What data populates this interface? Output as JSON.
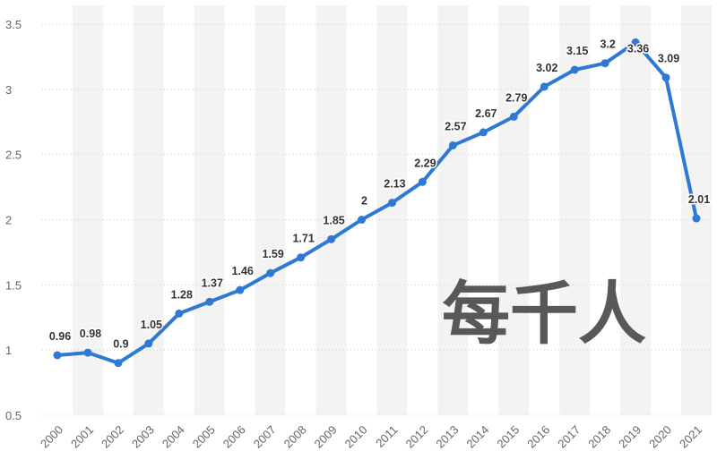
{
  "chart_data": {
    "type": "line",
    "categories": [
      "2000",
      "2001",
      "2002",
      "2003",
      "2004",
      "2005",
      "2006",
      "2007",
      "2008",
      "2009",
      "2010",
      "2011",
      "2012",
      "2013",
      "2014",
      "2015",
      "2016",
      "2017",
      "2018",
      "2019",
      "2020",
      "2021"
    ],
    "values": [
      0.96,
      0.98,
      0.9,
      1.05,
      1.28,
      1.37,
      1.46,
      1.59,
      1.71,
      1.85,
      2,
      2.13,
      2.29,
      2.57,
      2.67,
      2.79,
      3.02,
      3.15,
      3.2,
      3.36,
      3.09,
      2.01
    ],
    "ylim": [
      0.5,
      3.5
    ],
    "y_ticks": [
      0.5,
      1,
      1.5,
      2,
      2.5,
      3,
      3.5
    ],
    "grid": true,
    "legend": "none",
    "data_labels_shown": true,
    "alternating_column_bands": true,
    "line_color": "#2f78d4",
    "band_color": "#f3f3f3",
    "annotation": "每千人"
  }
}
